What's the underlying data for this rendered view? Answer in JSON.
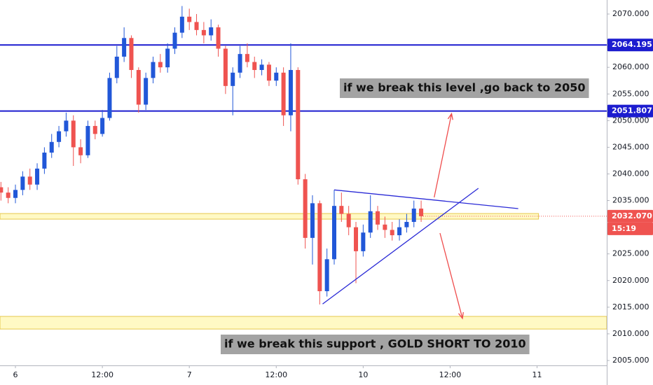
{
  "chart_data": {
    "type": "candlestick",
    "x": [
      -2,
      -1,
      0,
      1,
      2,
      3,
      4,
      5,
      6,
      7,
      8,
      9,
      10,
      11,
      12,
      13,
      14,
      15,
      16,
      17,
      18,
      19,
      20,
      21,
      22,
      23,
      24,
      25,
      26,
      27,
      28,
      29,
      30,
      31,
      32,
      33,
      34,
      35,
      36,
      37,
      38,
      39,
      40,
      41,
      42,
      43,
      44,
      45,
      46,
      47,
      48,
      49,
      50,
      51,
      52,
      53,
      54,
      55,
      56
    ],
    "open": [
      2037.5,
      2036.5,
      2035.5,
      2037,
      2039.5,
      2038,
      2041,
      2044,
      2046,
      2048,
      2050,
      2045,
      2043.5,
      2049,
      2047.5,
      2050.5,
      2058,
      2062,
      2065.5,
      2059.5,
      2053,
      2058,
      2061,
      2060,
      2063.5,
      2066.5,
      2069.5,
      2068.5,
      2067,
      2066,
      2067.5,
      2063.5,
      2056.5,
      2059,
      2062.5,
      2061,
      2059.5,
      2060.5,
      2057.5,
      2059,
      2051,
      2059.5,
      2039,
      2028,
      2034.5,
      2018,
      2024,
      2034,
      2032.5,
      2030,
      2025.5,
      2029,
      2033,
      2030.5,
      2029.5,
      2028.5,
      2030,
      2031,
      2033.5
    ],
    "high": [
      2038.5,
      2037.5,
      2038,
      2040.5,
      2041,
      2042,
      2045,
      2047.5,
      2049,
      2051.5,
      2051,
      2046.5,
      2050,
      2050,
      2052,
      2059,
      2064,
      2067.5,
      2066,
      2060,
      2059,
      2062,
      2062.5,
      2064.5,
      2067.5,
      2071.5,
      2071,
      2070,
      2068.5,
      2069,
      2068,
      2064,
      2060,
      2064,
      2064.5,
      2062,
      2061.5,
      2061,
      2060,
      2060,
      2064.5,
      2060,
      2040,
      2036,
      2035,
      2026,
      2037,
      2036.5,
      2034,
      2031,
      2030.5,
      2036,
      2034,
      2032,
      2031,
      2031.5,
      2032.5,
      2035,
      2035
    ],
    "low": [
      2035,
      2034.5,
      2034.5,
      2036,
      2037,
      2037,
      2040,
      2043,
      2045,
      2047,
      2041.5,
      2042,
      2043,
      2046.5,
      2047,
      2050,
      2057,
      2061,
      2058,
      2051.5,
      2052,
      2057,
      2059,
      2059,
      2062.5,
      2065.5,
      2067,
      2066,
      2064.5,
      2065,
      2062,
      2055,
      2051,
      2058,
      2060,
      2058,
      2058.5,
      2056.5,
      2056.5,
      2049,
      2048,
      2038,
      2026,
      2023,
      2015.5,
      2017,
      2023,
      2031,
      2028.5,
      2019.5,
      2024.5,
      2028,
      2029.5,
      2028,
      2027.5,
      2027.5,
      2029,
      2030,
      2031
    ],
    "close": [
      2036.5,
      2035.5,
      2037,
      2039.5,
      2038,
      2041,
      2044,
      2046,
      2048,
      2050,
      2045,
      2043.5,
      2049,
      2047.5,
      2050.5,
      2058,
      2062,
      2065.5,
      2059.5,
      2053,
      2058,
      2061,
      2060,
      2063.5,
      2066.5,
      2069.5,
      2068.5,
      2067,
      2066,
      2067.5,
      2063.5,
      2056.5,
      2059,
      2062.5,
      2061,
      2059.5,
      2060.5,
      2057.5,
      2059,
      2051,
      2059.5,
      2039,
      2028,
      2034.5,
      2018,
      2024,
      2034,
      2032.5,
      2030,
      2025.5,
      2029,
      2033,
      2030.5,
      2029.5,
      2028.5,
      2030,
      2031,
      2033.5,
      2032.07
    ],
    "up_color": "#2157d8",
    "down_color": "#ef5350",
    "xlim": [
      -2.13,
      81.62
    ],
    "xticks": [
      {
        "value": 0,
        "label": "6"
      },
      {
        "value": 12,
        "label": "12:00"
      },
      {
        "value": 24,
        "label": "7"
      },
      {
        "value": 36,
        "label": "12:00"
      },
      {
        "value": 48,
        "label": "10"
      },
      {
        "value": 60,
        "label": "12:00"
      },
      {
        "value": 72,
        "label": "11"
      }
    ],
    "ylim": [
      2004.08,
      2072.63
    ],
    "yticks": [
      {
        "value": 2005,
        "label": "2005.000"
      },
      {
        "value": 2010,
        "label": "2010.000"
      },
      {
        "value": 2015,
        "label": "2015.000"
      },
      {
        "value": 2020,
        "label": "2020.000"
      },
      {
        "value": 2025,
        "label": "2025.000"
      },
      {
        "value": 2035,
        "label": "2035.000"
      },
      {
        "value": 2040,
        "label": "2040.000"
      },
      {
        "value": 2045,
        "label": "2045.000"
      },
      {
        "value": 2050,
        "label": "2050.000"
      },
      {
        "value": 2055,
        "label": "2055.000"
      },
      {
        "value": 2060,
        "label": "2060.000"
      },
      {
        "value": 2070,
        "label": "2070.000"
      }
    ],
    "levels": [
      {
        "value": 2064.195,
        "color": "#1c1ccf"
      },
      {
        "value": 2051.807,
        "color": "#1c1ccf"
      }
    ],
    "last_price": {
      "value": 2032.07,
      "label": "2032.070",
      "color": "#ef5350"
    },
    "countdown": "15:19",
    "zones": [
      {
        "x": [
          -2.13,
          72.2
        ],
        "y": [
          2031.52,
          2032.57
        ]
      },
      {
        "x": [
          -2.13,
          81.62
        ],
        "y": [
          2010.9,
          2013.27
        ]
      }
    ],
    "trendlines": [
      {
        "x": [
          44,
          69.4
        ],
        "y": [
          2037,
          2033.5
        ],
        "color": "#2a2ad6"
      },
      {
        "x": [
          42.4,
          63.9
        ],
        "y": [
          2015.6,
          2037.3
        ],
        "color": "#2a2ad6"
      }
    ],
    "arrows": [
      {
        "x": [
          57.8,
          60.2
        ],
        "y": [
          2035.6,
          2051.3
        ],
        "color": "#ef4d4d"
      },
      {
        "x": [
          58.6,
          61.7
        ],
        "y": [
          2028.9,
          2012.9
        ],
        "color": "#ef4d4d"
      }
    ],
    "annotations": [
      "if we break this level ,go back to 2050",
      "if we break this support , GOLD SHORT TO 2010"
    ]
  }
}
